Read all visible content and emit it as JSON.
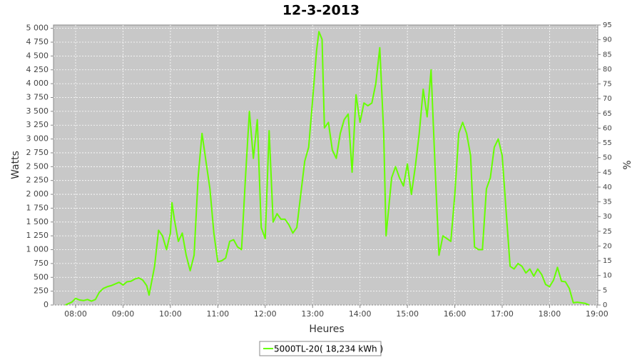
{
  "chart_data": {
    "type": "line",
    "title": "12-3-2013",
    "x_label": "Heures",
    "y_label": "Watts",
    "y2_label": "%",
    "x": [
      "07:47",
      "07:50",
      "07:55",
      "08:00",
      "08:05",
      "08:10",
      "08:15",
      "08:20",
      "08:25",
      "08:30",
      "08:35",
      "08:40",
      "08:45",
      "08:50",
      "08:55",
      "09:00",
      "09:05",
      "09:10",
      "09:15",
      "09:20",
      "09:25",
      "09:30",
      "09:33",
      "09:40",
      "09:45",
      "09:50",
      "09:55",
      "10:00",
      "10:02",
      "10:05",
      "10:10",
      "10:15",
      "10:20",
      "10:25",
      "10:30",
      "10:35",
      "10:40",
      "10:45",
      "10:50",
      "10:55",
      "11:00",
      "11:05",
      "11:10",
      "11:15",
      "11:20",
      "11:25",
      "11:30",
      "11:35",
      "11:40",
      "11:45",
      "11:50",
      "11:55",
      "12:00",
      "12:05",
      "12:10",
      "12:15",
      "12:20",
      "12:25",
      "12:30",
      "12:35",
      "12:40",
      "12:45",
      "12:50",
      "12:55",
      "13:00",
      "13:05",
      "13:08",
      "13:12",
      "13:15",
      "13:20",
      "13:25",
      "13:30",
      "13:35",
      "13:40",
      "13:45",
      "13:50",
      "13:55",
      "14:00",
      "14:05",
      "14:10",
      "14:15",
      "14:20",
      "14:25",
      "14:30",
      "14:33",
      "14:40",
      "14:45",
      "14:50",
      "14:55",
      "15:00",
      "15:05",
      "15:10",
      "15:15",
      "15:20",
      "15:25",
      "15:30",
      "15:35",
      "15:40",
      "15:45",
      "15:50",
      "15:55",
      "16:00",
      "16:05",
      "16:10",
      "16:15",
      "16:20",
      "16:25",
      "16:30",
      "16:35",
      "16:40",
      "16:45",
      "16:50",
      "16:55",
      "17:00",
      "17:05",
      "17:10",
      "17:15",
      "17:20",
      "17:25",
      "17:30",
      "17:35",
      "17:40",
      "17:45",
      "17:50",
      "17:55",
      "18:00",
      "18:05",
      "18:10",
      "18:15",
      "18:20",
      "18:25",
      "18:30",
      "18:35",
      "18:40",
      "18:45",
      "18:50"
    ],
    "series": [
      {
        "name": "5000TL-20( 18,234 kWh )",
        "color": "#66ff00",
        "values": [
          0,
          20,
          50,
          120,
          90,
          80,
          100,
          70,
          100,
          230,
          300,
          330,
          350,
          380,
          410,
          360,
          420,
          430,
          470,
          490,
          450,
          350,
          180,
          700,
          1350,
          1250,
          1000,
          1300,
          1850,
          1550,
          1150,
          1300,
          900,
          620,
          900,
          2300,
          3100,
          2600,
          2100,
          1300,
          780,
          800,
          850,
          1150,
          1180,
          1050,
          1000,
          2300,
          3500,
          2650,
          3350,
          1400,
          1200,
          3150,
          1500,
          1650,
          1550,
          1550,
          1450,
          1300,
          1400,
          2000,
          2600,
          2850,
          3700,
          4600,
          4940,
          4800,
          3200,
          3300,
          2800,
          2650,
          3100,
          3350,
          3450,
          2400,
          3800,
          3300,
          3650,
          3600,
          3650,
          4000,
          4650,
          3100,
          1250,
          2300,
          2500,
          2300,
          2150,
          2550,
          2000,
          2500,
          3100,
          3900,
          3400,
          4250,
          2500,
          900,
          1250,
          1200,
          1150,
          2000,
          3100,
          3300,
          3100,
          2700,
          1050,
          1000,
          1000,
          2100,
          2300,
          2850,
          3000,
          2700,
          1700,
          700,
          650,
          750,
          700,
          580,
          650,
          520,
          650,
          550,
          370,
          330,
          450,
          680,
          430,
          420,
          300,
          40,
          50,
          40,
          30,
          0
        ]
      }
    ],
    "xlim": [
      "07:32",
      "19:01"
    ],
    "xticks": [
      "08:00",
      "09:00",
      "10:00",
      "11:00",
      "12:00",
      "13:00",
      "14:00",
      "15:00",
      "16:00",
      "17:00",
      "18:00",
      "19:00"
    ],
    "ylim": [
      0,
      5060
    ],
    "yticks": [
      0,
      250,
      500,
      750,
      {
        "value": 1000,
        "label": "1 000"
      },
      {
        "value": 1250,
        "label": "1 250"
      },
      {
        "value": 1500,
        "label": "1 500"
      },
      {
        "value": 1750,
        "label": "1 750"
      },
      {
        "value": 2000,
        "label": "2 000"
      },
      {
        "value": 2250,
        "label": "2 250"
      },
      {
        "value": 2500,
        "label": "2 500"
      },
      {
        "value": 2750,
        "label": "2 750"
      },
      {
        "value": 3000,
        "label": "3 000"
      },
      {
        "value": 3250,
        "label": "3 250"
      },
      {
        "value": 3500,
        "label": "3 500"
      },
      {
        "value": 3750,
        "label": "3 750"
      },
      {
        "value": 4000,
        "label": "4 000"
      },
      {
        "value": 4250,
        "label": "4 250"
      },
      {
        "value": 4500,
        "label": "4 500"
      },
      {
        "value": 4750,
        "label": "4 750"
      },
      {
        "value": 5000,
        "label": "5 000"
      }
    ],
    "y2lim": [
      0,
      95
    ],
    "y2ticks": [
      0,
      5,
      10,
      15,
      20,
      25,
      30,
      35,
      40,
      45,
      50,
      55,
      60,
      65,
      70,
      75,
      80,
      85,
      90,
      95
    ],
    "grid": true
  }
}
